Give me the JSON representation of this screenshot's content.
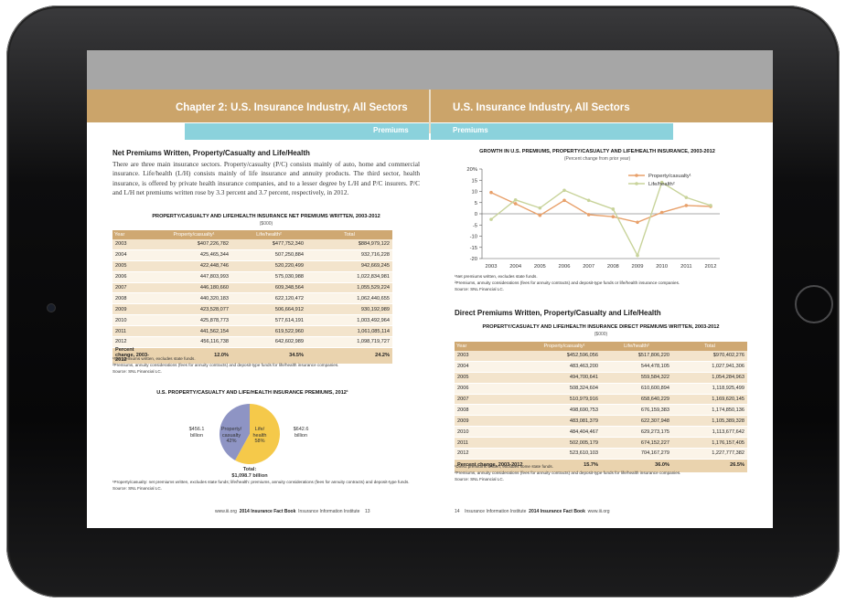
{
  "left_page": {
    "chapter_title": "Chapter 2: U.S. Insurance Industry, All Sectors",
    "section_tab": "Premiums",
    "heading": "Net Premiums Written, Property/Casualty and Life/Health",
    "paragraph": "There are three main insurance sectors. Property/casualty (P/C) consists mainly of auto, home and commercial insurance. Life/health (L/H) consists mainly of life insurance and annuity products. The third sector, health insurance, is offered by private health insurance companies, and to a lesser degree by L/H and P/C insurers. P/C and L/H net premiums written rose by 3.3 percent and 3.7 percent, respectively, in 2012.",
    "net_table": {
      "title": "PROPERTY/CASUALTY AND LIFE/HEALTH INSURANCE NET PREMIUMS WRITTEN, 2003-2012",
      "unit": "($000)",
      "columns": [
        "Year",
        "Property/casualty¹",
        "Life/health²",
        "Total"
      ],
      "rows": [
        [
          "2003",
          "$407,226,782",
          "$477,752,340",
          "$884,979,122"
        ],
        [
          "2004",
          "425,465,344",
          "507,250,884",
          "932,716,228"
        ],
        [
          "2005",
          "422,448,746",
          "520,220,499",
          "942,669,245"
        ],
        [
          "2006",
          "447,803,993",
          "575,030,988",
          "1,022,834,981"
        ],
        [
          "2007",
          "446,180,660",
          "609,348,564",
          "1,055,529,224"
        ],
        [
          "2008",
          "440,320,183",
          "622,120,472",
          "1,062,440,655"
        ],
        [
          "2009",
          "423,528,077",
          "506,664,912",
          "930,192,989"
        ],
        [
          "2010",
          "425,878,773",
          "577,614,191",
          "1,003,492,964"
        ],
        [
          "2011",
          "441,562,154",
          "619,522,960",
          "1,061,085,114"
        ],
        [
          "2012",
          "456,116,738",
          "642,602,989",
          "1,098,719,727"
        ]
      ],
      "pct_row": [
        "Percent change, 2003-2012",
        "12.0%",
        "34.5%",
        "24.2%"
      ],
      "footnotes": [
        "¹Net premiums written, excludes state funds.",
        "²Premiums, annuity considerations (fees for annuity contracts) and deposit-type funds for life/health insurance companies."
      ],
      "source": "Source: SNL Financial LC."
    },
    "pie": {
      "title": "U.S. PROPERTY/CASUALTY AND LIFE/HEALTH INSURANCE PREMIUMS, 2012¹",
      "left_value": "$456.1 billion",
      "right_value": "$642.6 billion",
      "pc_label": "Property/ casualty 42%",
      "lh_label": "Life/ health 58%",
      "total_label": "Total:",
      "total_value": "$1,098.7 billion",
      "pc_color": "#8e94c4",
      "lh_color": "#f5c94a",
      "footnote": "¹Property/casualty: net premiums written, excludes state funds; life/health: premiums, annuity considerations (fees for annuity contracts) and deposit-type funds.",
      "source": "Source: SNL Financial LC."
    },
    "footer": {
      "url": "www.iii.org",
      "book": "2014 Insurance Fact Book",
      "org": "Insurance Information Institute",
      "page": "13"
    }
  },
  "right_page": {
    "chapter_title": "U.S. Insurance Industry, All Sectors",
    "section_tab": "Premiums",
    "line_chart": {
      "title": "GROWTH IN U.S. PREMIUMS, PROPERTY/CASUALTY AND LIFE/HEALTH INSURANCE, 2003-2012",
      "subtitle": "(Percent change from prior year)",
      "footnotes": [
        "¹Net premiums written, excludes state funds.",
        "²Premiums, annuity considerations (fees for annuity contracts) and deposit-type funds or life/health insurance companies."
      ],
      "source": "Source: SNL Financial LC."
    },
    "heading": "Direct Premiums Written, Property/Casualty and Life/Health",
    "direct_table": {
      "title": "PROPERTY/CASUALTY AND LIFE/HEALTH INSURANCE DIRECT PREMIUMS WRITTEN, 2003-2012",
      "unit": "($000)",
      "columns": [
        "Year",
        "Property/casualty¹",
        "Life/health²",
        "Total"
      ],
      "rows": [
        [
          "2003",
          "$452,596,056",
          "$517,806,220",
          "$970,402,276"
        ],
        [
          "2004",
          "483,463,200",
          "544,478,105",
          "1,027,941,306"
        ],
        [
          "2005",
          "494,700,641",
          "559,584,322",
          "1,054,284,963"
        ],
        [
          "2006",
          "508,324,604",
          "610,600,894",
          "1,118,925,499"
        ],
        [
          "2007",
          "510,979,916",
          "658,640,229",
          "1,169,620,145"
        ],
        [
          "2008",
          "498,690,753",
          "676,159,383",
          "1,174,850,136"
        ],
        [
          "2009",
          "483,081,379",
          "622,307,948",
          "1,105,389,328"
        ],
        [
          "2010",
          "484,404,467",
          "629,273,175",
          "1,113,677,642"
        ],
        [
          "2011",
          "502,005,179",
          "674,152,227",
          "1,176,157,405"
        ],
        [
          "2012",
          "523,610,103",
          "704,167,279",
          "1,227,777,382"
        ]
      ],
      "pct_row": [
        "Percent change, 2003-2012",
        "15.7%",
        "36.0%",
        "26.5%"
      ],
      "footnotes": [
        "¹Direct premiums written, excludes some state funds.",
        "²Premiums, annuity considerations (fees for annuity contracts) and deposit-type funds for life/health insurance companies."
      ],
      "source": "Source: SNL Financial LC."
    },
    "footer": {
      "page": "14",
      "org": "Insurance Information Institute",
      "book": "2014 Insurance Fact Book",
      "url": "www.iii.org"
    }
  },
  "chart_data": [
    {
      "type": "line",
      "title": "GROWTH IN U.S. PREMIUMS, PROPERTY/CASUALTY AND LIFE/HEALTH INSURANCE, 2003-2012",
      "subtitle": "(Percent change from prior year)",
      "x": [
        "2003",
        "2004",
        "2005",
        "2006",
        "2007",
        "2008",
        "2009",
        "2010",
        "2011",
        "2012"
      ],
      "series": [
        {
          "name": "Property/casualty¹",
          "color": "#e8a06a",
          "values": [
            9.5,
            4.5,
            -0.7,
            6.0,
            -0.4,
            -1.3,
            -3.8,
            0.6,
            3.7,
            3.3
          ]
        },
        {
          "name": "Life/health²",
          "color": "#c8d39a",
          "values": [
            -2.5,
            6.2,
            2.6,
            10.5,
            6.0,
            2.1,
            -18.6,
            14.0,
            7.3,
            3.7
          ]
        }
      ],
      "ylim": [
        -20,
        20
      ],
      "yticks": [
        "20%",
        "15",
        "10",
        "5",
        "0",
        "-5",
        "-10",
        "-15",
        "-20"
      ],
      "grid": false,
      "legend": "top-right"
    },
    {
      "type": "pie",
      "title": "U.S. PROPERTY/CASUALTY AND LIFE/HEALTH INSURANCE PREMIUMS, 2012¹",
      "categories": [
        "Property/casualty",
        "Life/health"
      ],
      "values": [
        42,
        58
      ],
      "amounts": [
        "$456.1 billion",
        "$642.6 billion"
      ]
    }
  ]
}
